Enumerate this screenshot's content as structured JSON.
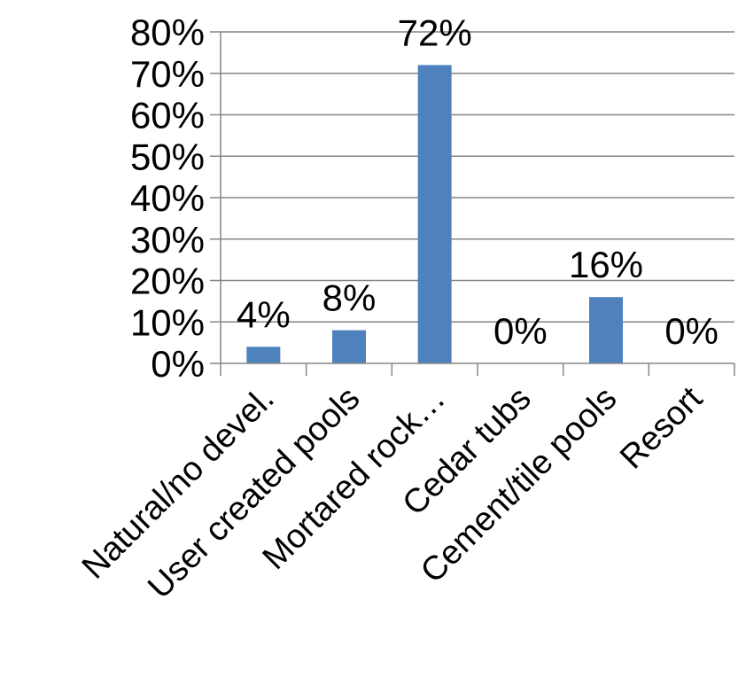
{
  "chart_data": {
    "type": "bar",
    "title": "",
    "xlabel": "",
    "ylabel": "",
    "categories": [
      "Natural/no devel.",
      "User created pools",
      "Mortared rock…",
      "Cedar tubs",
      "Cement/tile pools",
      "Resort"
    ],
    "values": [
      4,
      8,
      72,
      0,
      16,
      0
    ],
    "data_labels": [
      "4%",
      "8%",
      "72%",
      "0%",
      "16%",
      "0%"
    ],
    "ylim": [
      0,
      80
    ],
    "yticks": [
      0,
      10,
      20,
      30,
      40,
      50,
      60,
      70,
      80
    ],
    "ytick_labels": [
      "0%",
      "10%",
      "20%",
      "30%",
      "40%",
      "50%",
      "60%",
      "70%",
      "80%"
    ],
    "grid": true,
    "legend": "none",
    "colors": {
      "bar": "#4f81bd",
      "grid": "#868686",
      "axis": "#868686"
    }
  }
}
